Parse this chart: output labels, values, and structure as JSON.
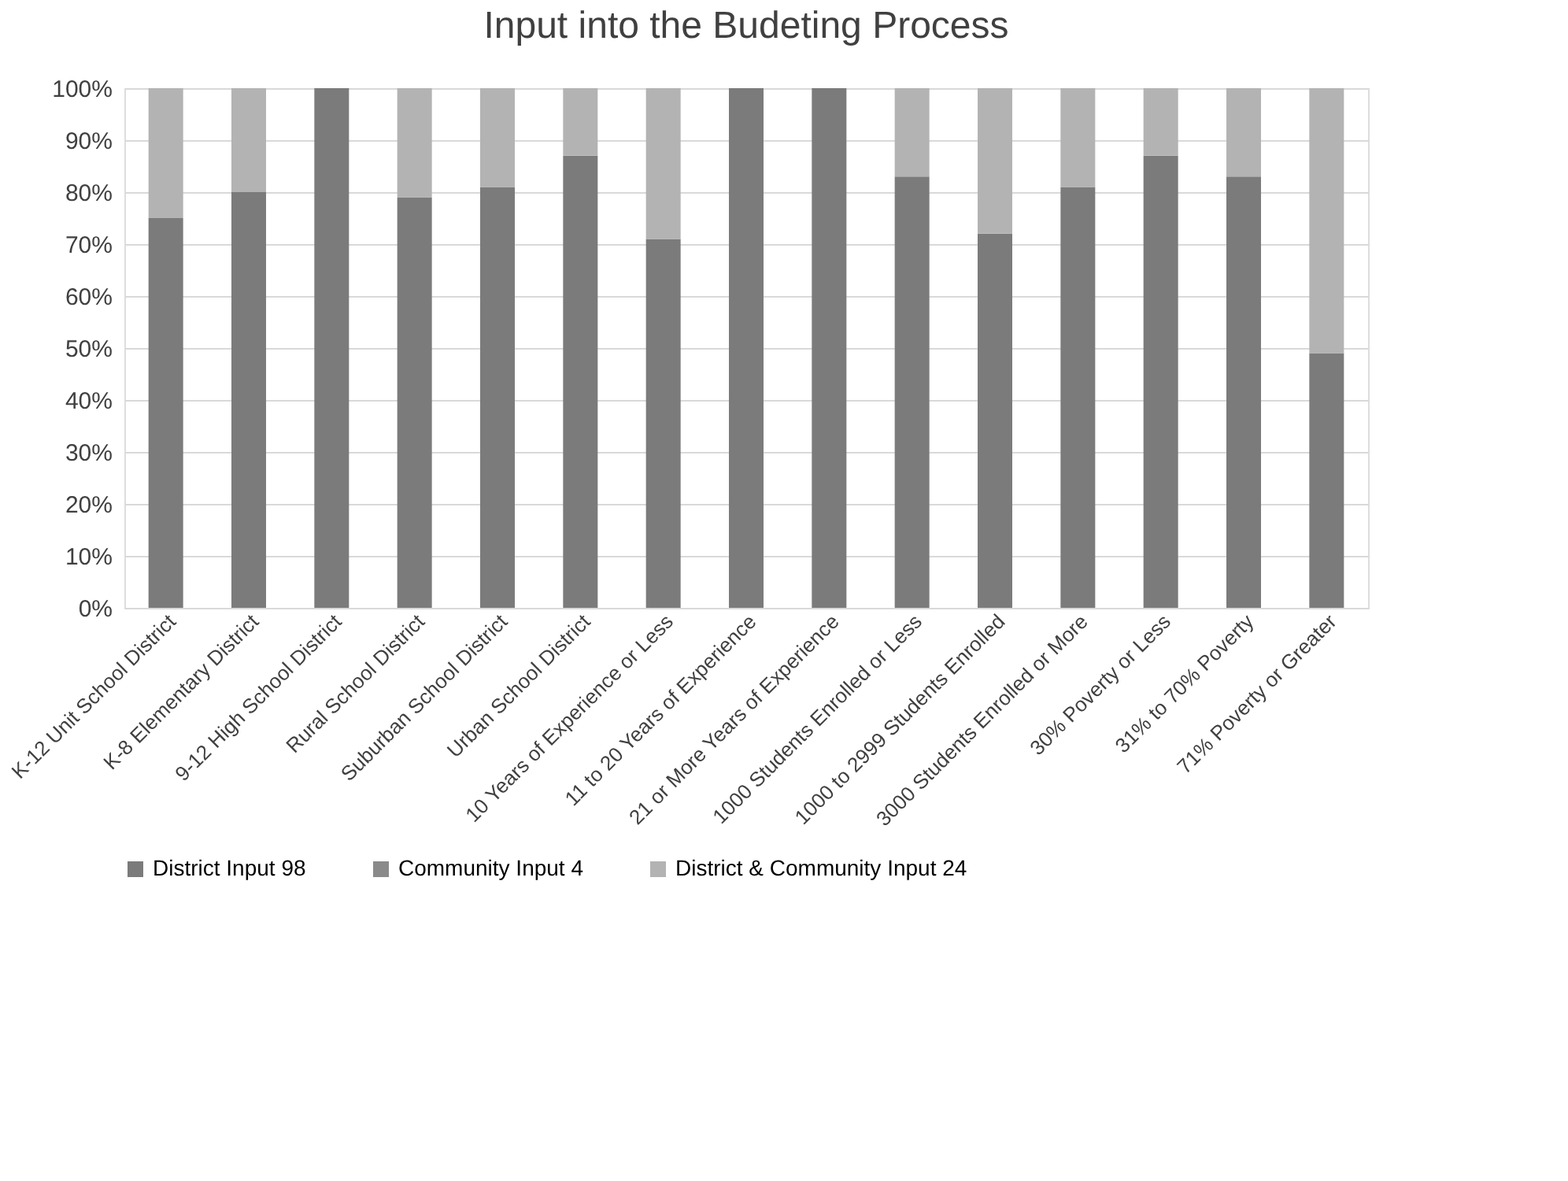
{
  "chart_data": {
    "type": "bar",
    "title": "Input into the Budeting Process",
    "stacked": true,
    "categories": [
      "K-12 Unit School District",
      "K-8 Elementary District",
      "9-12 High School District",
      "Rural School District",
      "Suburban School District",
      "Urban School District",
      "10 Years of Experience or Less",
      "11 to 20 Years of Experience",
      "21 or More Years of Experience",
      "1000 Students Enrolled or Less",
      "1000 to 2999 Students Enrolled",
      "3000 Students Enrolled or More",
      "30% Poverty or Less",
      "31% to 70% Poverty",
      "71% Poverty or Greater"
    ],
    "series": [
      {
        "name": "District Input 98",
        "color": "#7b7b7b",
        "values": [
          75,
          80,
          100,
          79,
          81,
          87,
          71,
          100,
          100,
          83,
          72,
          81,
          87,
          83,
          49
        ]
      },
      {
        "name": "Community Input 4",
        "color": "#8a8a8a",
        "values": [
          0,
          0,
          0,
          0,
          0,
          0,
          0,
          0,
          0,
          0,
          0,
          0,
          0,
          0,
          0
        ]
      },
      {
        "name": "District & Community Input 24",
        "color": "#b3b3b3",
        "values": [
          25,
          20,
          0,
          21,
          19,
          13,
          29,
          0,
          0,
          17,
          28,
          19,
          13,
          17,
          51
        ]
      }
    ],
    "ylim": [
      0,
      100
    ],
    "yticks": [
      {
        "value": 0,
        "label": "0%"
      },
      {
        "value": 10,
        "label": "10%"
      },
      {
        "value": 20,
        "label": "20%"
      },
      {
        "value": 30,
        "label": "30%"
      },
      {
        "value": 40,
        "label": "40%"
      },
      {
        "value": 50,
        "label": "50%"
      },
      {
        "value": 60,
        "label": "60%"
      },
      {
        "value": 70,
        "label": "70%"
      },
      {
        "value": 80,
        "label": "80%"
      },
      {
        "value": 90,
        "label": "90%"
      },
      {
        "value": 100,
        "label": "100%"
      }
    ],
    "grid": "y",
    "legend": "bottom"
  }
}
